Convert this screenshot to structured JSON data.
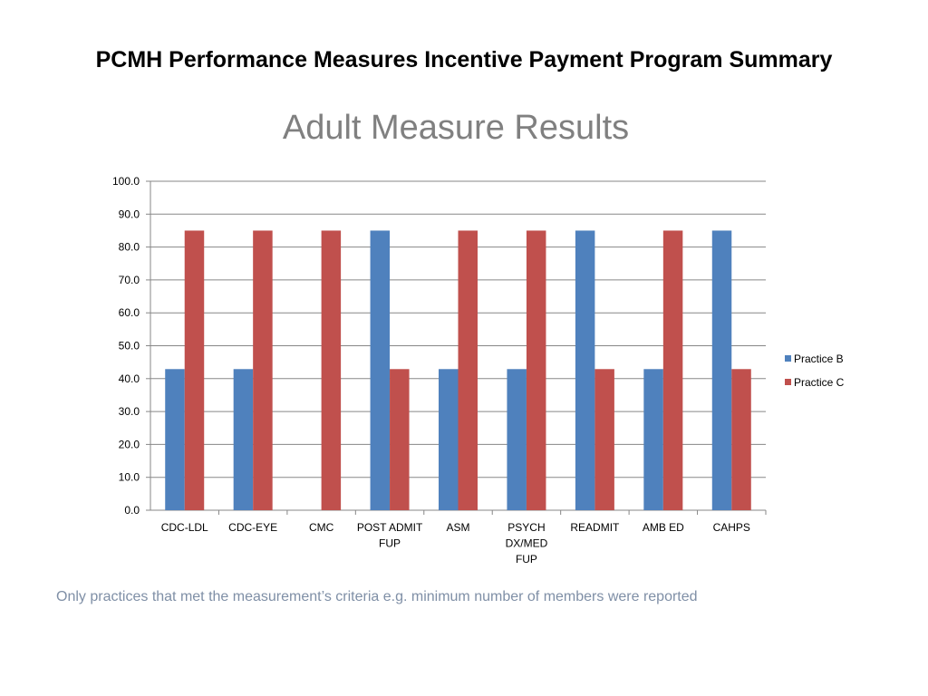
{
  "slide": {
    "title": "PCMH Performance Measures Incentive Payment Program Summary",
    "footnote": "Only practices that met the measurement’s criteria e.g. minimum number of  members were reported"
  },
  "chart_data": {
    "type": "bar",
    "title": "Adult Measure Results",
    "categories": [
      [
        "CDC-LDL"
      ],
      [
        "CDC-EYE"
      ],
      [
        "CMC"
      ],
      [
        "POST ADMIT",
        "FUP"
      ],
      [
        "ASM"
      ],
      [
        "PSYCH",
        "DX/MED",
        "FUP"
      ],
      [
        "READMIT"
      ],
      [
        "AMB ED"
      ],
      [
        "CAHPS"
      ]
    ],
    "series": [
      {
        "name": "Practice B",
        "color": "#4f81bd",
        "values": [
          42.9,
          42.9,
          null,
          85,
          42.9,
          42.9,
          85,
          42.9,
          85
        ]
      },
      {
        "name": "Practice C",
        "color": "#c0504d",
        "values": [
          85,
          85,
          85,
          42.9,
          85,
          85,
          42.9,
          85,
          42.9
        ]
      }
    ],
    "ylim": [
      0,
      100
    ],
    "yticks": [
      "0.0",
      "10.0",
      "20.0",
      "30.0",
      "40.0",
      "50.0",
      "60.0",
      "70.0",
      "80.0",
      "90.0",
      "100.0"
    ],
    "grid": true,
    "legend_position": "right"
  }
}
